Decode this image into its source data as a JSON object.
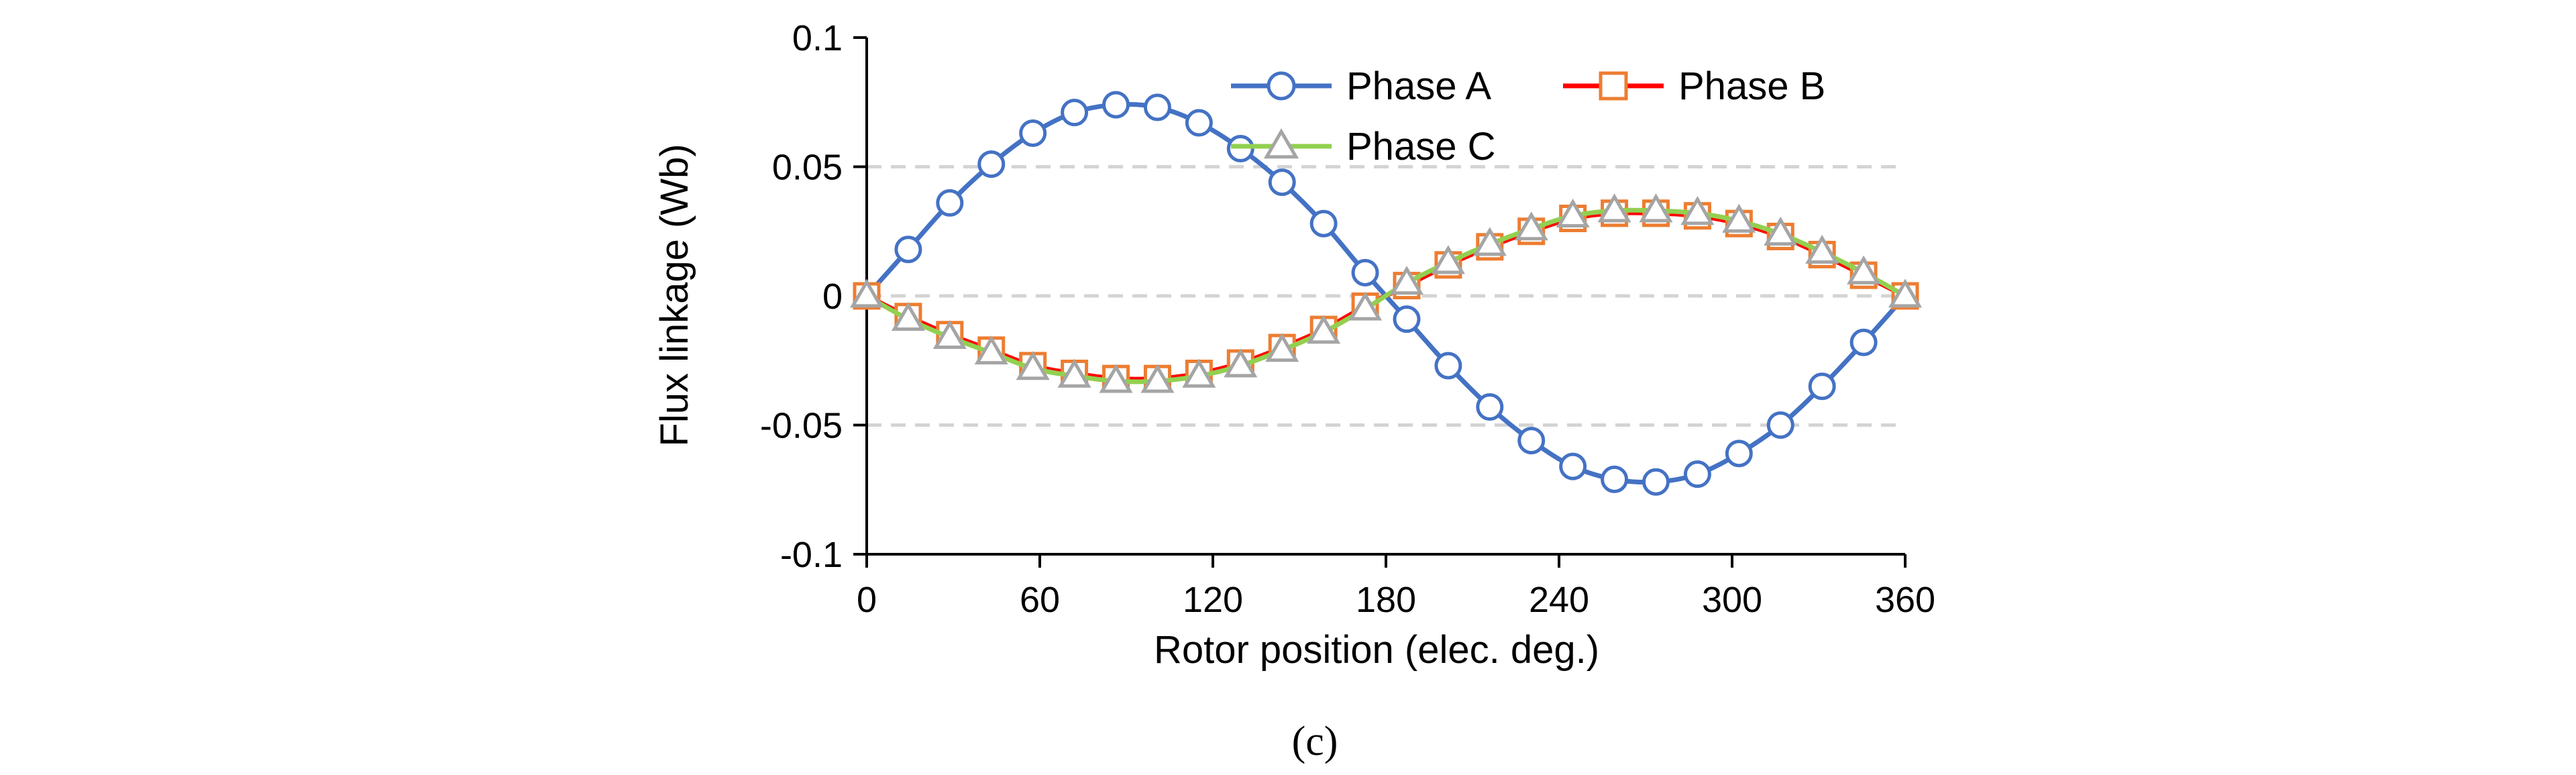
{
  "chart_data": {
    "type": "line",
    "title": "",
    "xlabel": "Rotor position (elec. deg.)",
    "ylabel": "Flux linkage (Wb)",
    "xlim": [
      0,
      360
    ],
    "ylim": [
      -0.1,
      0.1
    ],
    "x_ticks": [
      0,
      60,
      120,
      180,
      240,
      300,
      360
    ],
    "x_tick_labels": [
      "0",
      "60",
      "120",
      "180",
      "240",
      "300",
      "360"
    ],
    "y_ticks": [
      0.1,
      0.05,
      0,
      -0.05,
      -0.1
    ],
    "y_tick_labels": [
      "0.1",
      "0.05",
      "0",
      "-0.05",
      "-0.1"
    ],
    "grid": "horizontal dashed",
    "legend_position": "top-right",
    "caption": "(c)",
    "x": [
      0,
      14.4,
      28.8,
      43.2,
      57.6,
      72,
      86.4,
      100.8,
      115.2,
      129.6,
      144,
      158.4,
      172.8,
      187.2,
      201.6,
      216,
      230.4,
      244.8,
      259.2,
      273.6,
      288,
      302.4,
      316.8,
      331.2,
      345.6,
      360
    ],
    "series": [
      {
        "name": "Phase A",
        "line_color": "#4472C4",
        "marker": "circle",
        "marker_color": "#4472C4",
        "values": [
          0,
          0.018,
          0.036,
          0.051,
          0.063,
          0.071,
          0.074,
          0.073,
          0.067,
          0.057,
          0.044,
          0.028,
          0.009,
          -0.009,
          -0.027,
          -0.043,
          -0.056,
          -0.066,
          -0.071,
          -0.072,
          -0.069,
          -0.061,
          -0.05,
          -0.035,
          -0.018,
          0
        ]
      },
      {
        "name": "Phase B",
        "line_color": "#FF0000",
        "marker": "square",
        "marker_color": "#ED7D31",
        "values": [
          0,
          -0.008,
          -0.015,
          -0.021,
          -0.027,
          -0.03,
          -0.032,
          -0.032,
          -0.03,
          -0.026,
          -0.02,
          -0.013,
          -0.004,
          0.004,
          0.012,
          0.019,
          0.025,
          0.03,
          0.032,
          0.032,
          0.031,
          0.028,
          0.023,
          0.016,
          0.008,
          0
        ]
      },
      {
        "name": "Phase C",
        "line_color": "#92D050",
        "marker": "triangle",
        "marker_color": "#A5A5A5",
        "values": [
          0,
          -0.009,
          -0.016,
          -0.022,
          -0.028,
          -0.031,
          -0.033,
          -0.033,
          -0.031,
          -0.027,
          -0.021,
          -0.014,
          -0.005,
          0.005,
          0.013,
          0.02,
          0.026,
          0.031,
          0.033,
          0.033,
          0.032,
          0.029,
          0.024,
          0.017,
          0.009,
          0
        ]
      }
    ]
  }
}
